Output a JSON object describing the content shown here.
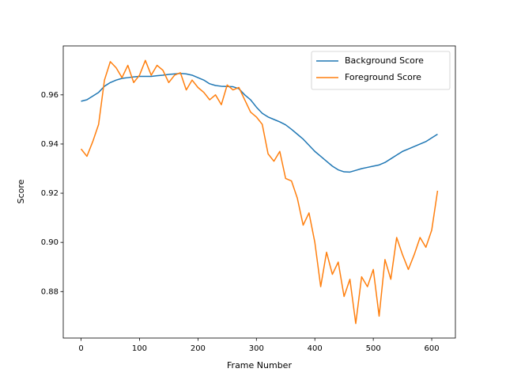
{
  "chart_data": {
    "type": "line",
    "x_label": "Frame Number",
    "y_label": "Score",
    "x": [
      0,
      10,
      20,
      30,
      40,
      50,
      60,
      70,
      80,
      90,
      100,
      110,
      120,
      130,
      140,
      150,
      160,
      170,
      180,
      190,
      200,
      210,
      220,
      230,
      240,
      250,
      260,
      270,
      280,
      290,
      300,
      310,
      320,
      330,
      340,
      350,
      360,
      370,
      380,
      390,
      400,
      410,
      420,
      430,
      440,
      450,
      460,
      470,
      480,
      490,
      500,
      510,
      520,
      530,
      540,
      550,
      560,
      570,
      580,
      590,
      600,
      610
    ],
    "series": [
      {
        "name": "Background Score",
        "color": "#1f77b4",
        "values": [
          0.9574,
          0.958,
          0.9595,
          0.961,
          0.9635,
          0.965,
          0.966,
          0.9667,
          0.967,
          0.9673,
          0.9675,
          0.9675,
          0.9675,
          0.9678,
          0.968,
          0.9683,
          0.9685,
          0.9687,
          0.9685,
          0.968,
          0.967,
          0.966,
          0.9645,
          0.9638,
          0.9635,
          0.9634,
          0.9633,
          0.9625,
          0.96,
          0.958,
          0.955,
          0.9525,
          0.951,
          0.95,
          0.949,
          0.9478,
          0.946,
          0.944,
          0.942,
          0.9395,
          0.937,
          0.935,
          0.933,
          0.931,
          0.9295,
          0.9287,
          0.9286,
          0.9293,
          0.93,
          0.9305,
          0.931,
          0.9315,
          0.9325,
          0.934,
          0.9355,
          0.937,
          0.938,
          0.939,
          0.94,
          0.941,
          0.9425,
          0.944
        ]
      },
      {
        "name": "Foreground Score",
        "color": "#ff7f0e",
        "values": [
          0.938,
          0.935,
          0.941,
          0.948,
          0.966,
          0.9735,
          0.971,
          0.967,
          0.972,
          0.965,
          0.968,
          0.974,
          0.968,
          0.972,
          0.97,
          0.965,
          0.968,
          0.969,
          0.962,
          0.966,
          0.963,
          0.961,
          0.958,
          0.96,
          0.956,
          0.964,
          0.962,
          0.963,
          0.958,
          0.953,
          0.951,
          0.948,
          0.936,
          0.933,
          0.937,
          0.926,
          0.925,
          0.918,
          0.907,
          0.912,
          0.9,
          0.882,
          0.896,
          0.887,
          0.892,
          0.878,
          0.885,
          0.867,
          0.886,
          0.882,
          0.889,
          0.87,
          0.893,
          0.885,
          0.902,
          0.895,
          0.889,
          0.895,
          0.902,
          0.898,
          0.905,
          0.921
        ]
      }
    ],
    "xlim": [
      -30.5,
      640.5
    ],
    "ylim": [
      0.8611,
      0.9799
    ],
    "xticks": [
      0,
      100,
      200,
      300,
      400,
      500,
      600
    ],
    "yticks": [
      0.88,
      {
        "value": 0.9,
        "label": "0.90"
      },
      0.92,
      0.94,
      0.96
    ],
    "legend": "upper right"
  }
}
